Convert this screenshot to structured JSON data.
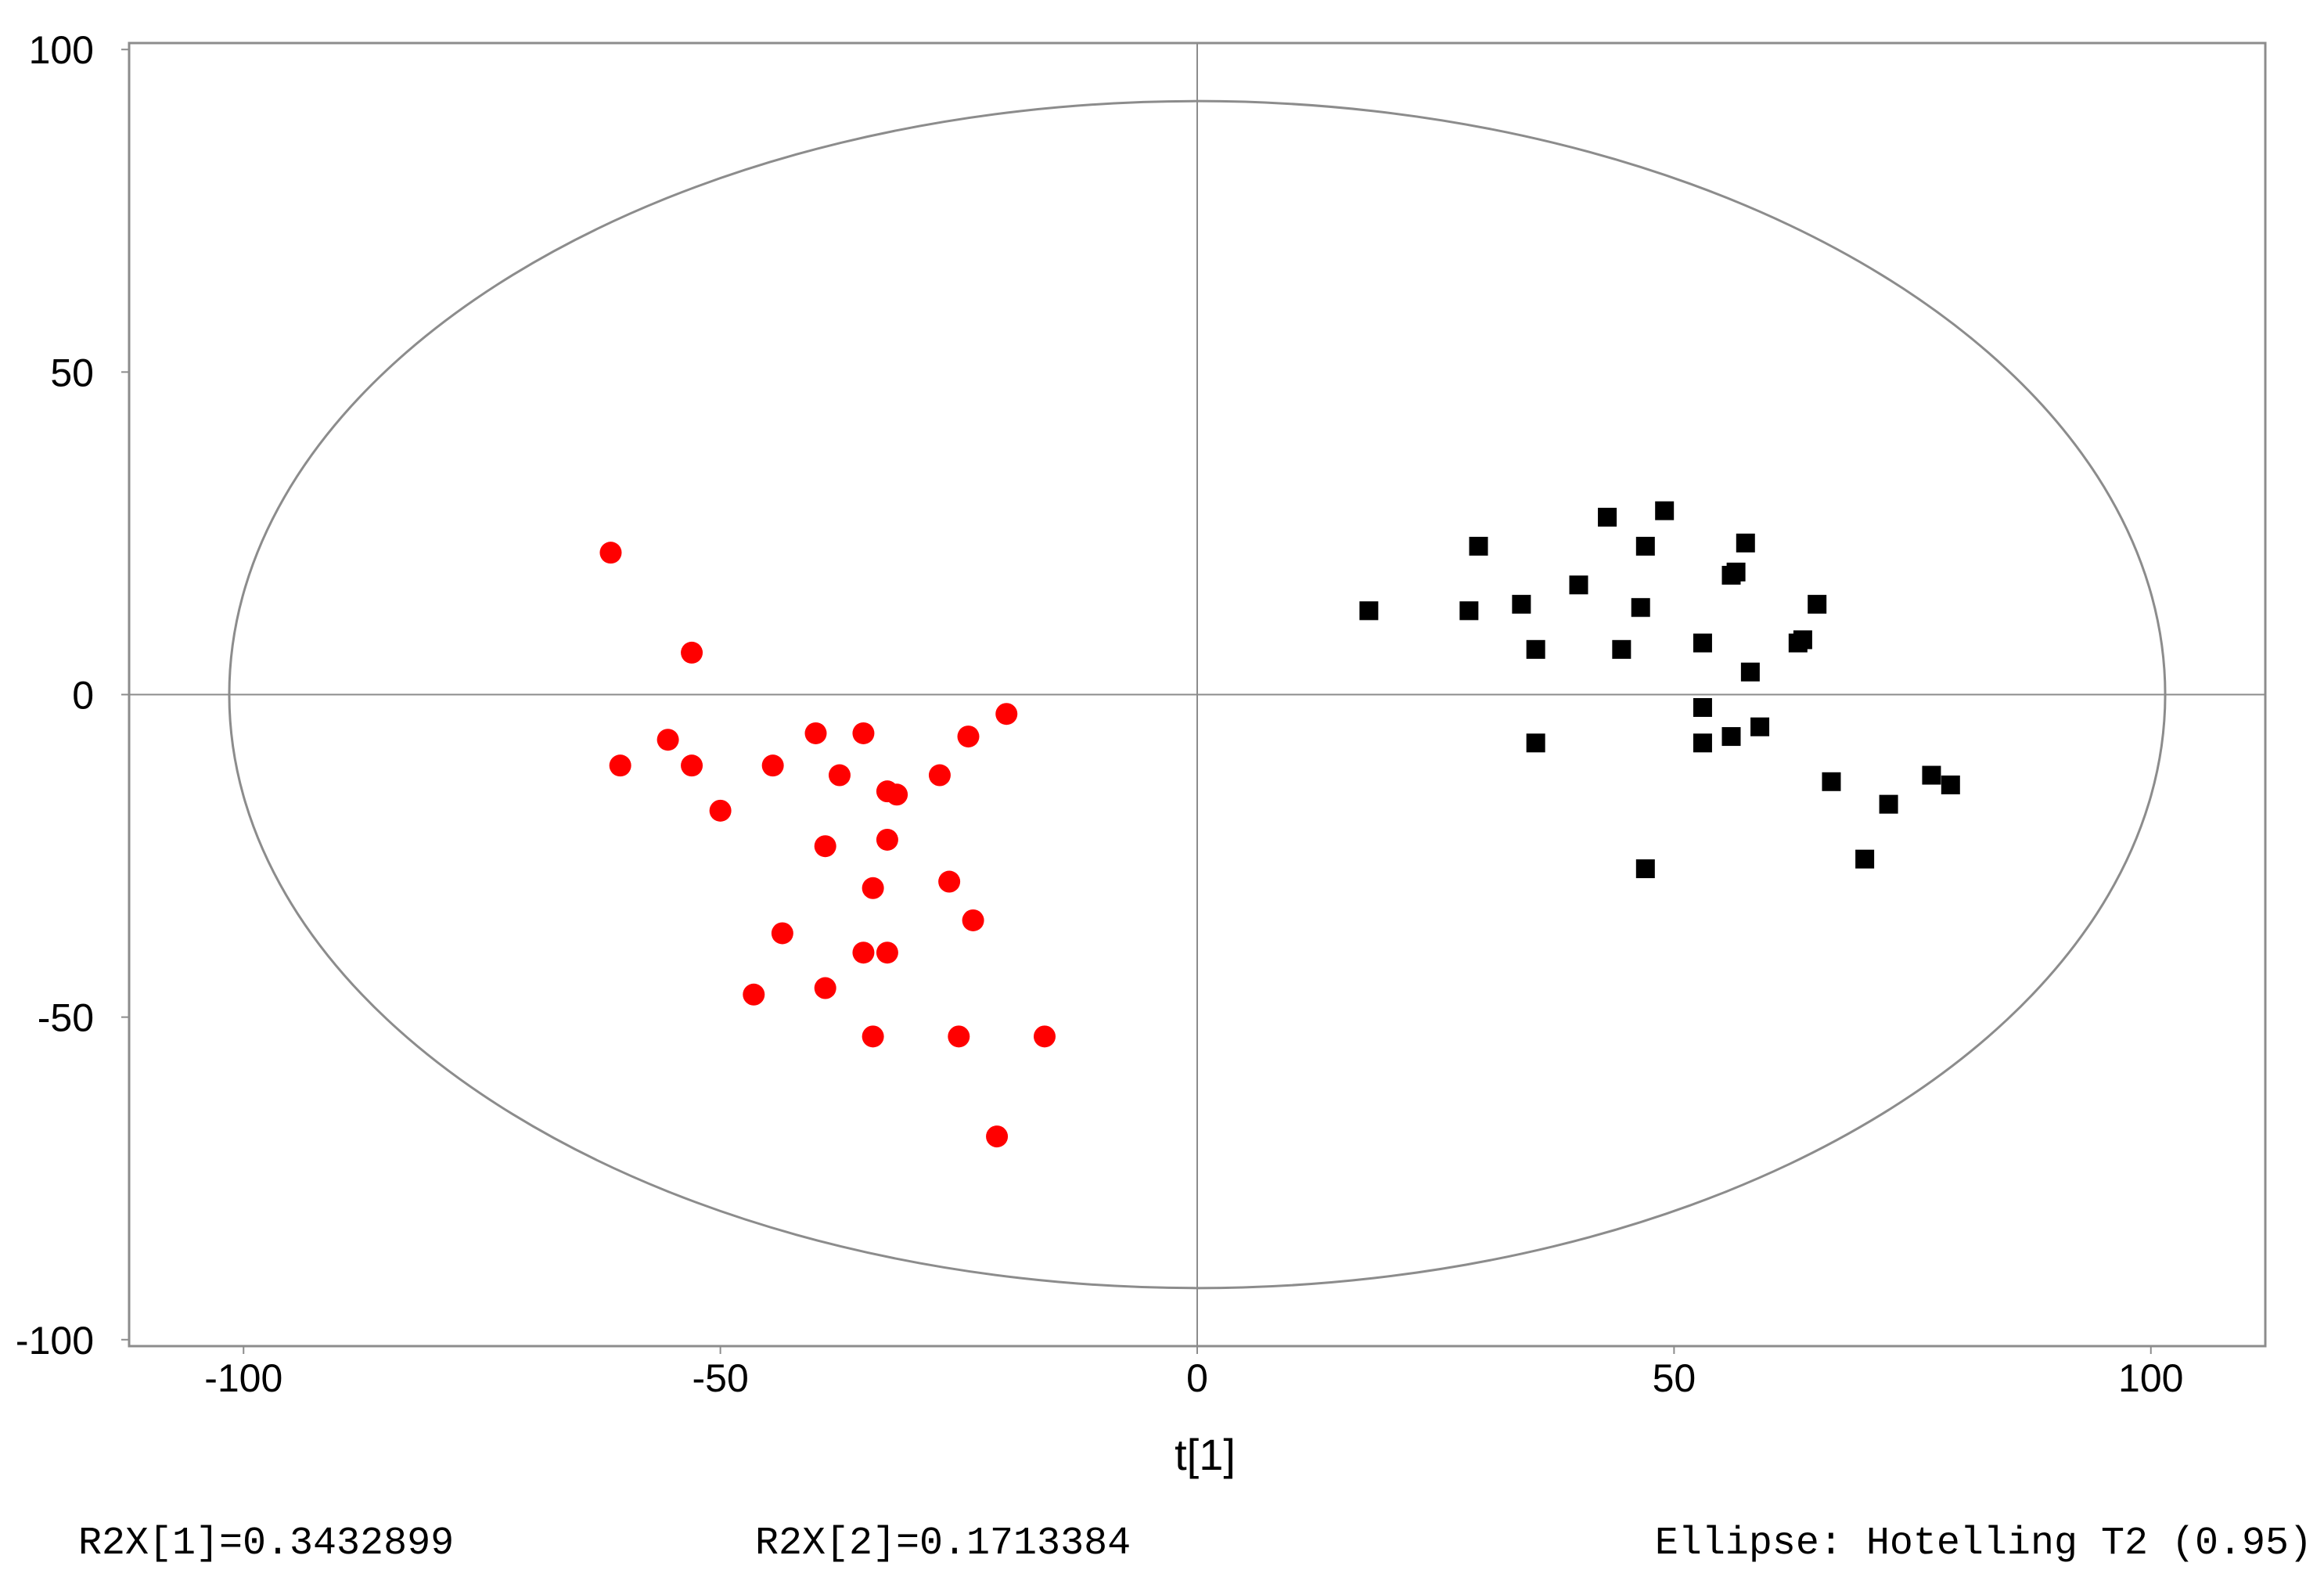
{
  "chart_data": {
    "type": "scatter",
    "title": "",
    "xlabel": "t[1]",
    "ylabel": "",
    "xlim": [
      -112,
      112
    ],
    "ylim": [
      -101,
      101
    ],
    "x_ticks": [
      -100,
      -50,
      0,
      50,
      100
    ],
    "y_ticks": [
      100,
      50,
      0,
      -50,
      -100
    ],
    "grid": false,
    "ellipse": {
      "label": "Ellipse: Hotelling T2 (0.95)",
      "semi_axis_x": 101.5,
      "semi_axis_y": 92
    },
    "series": [
      {
        "marker": "circle",
        "color": "#ff0000",
        "points": [
          {
            "x": -61.5,
            "y": 22
          },
          {
            "x": -53,
            "y": 6.5
          },
          {
            "x": -60.5,
            "y": -11
          },
          {
            "x": -55.5,
            "y": -7
          },
          {
            "x": -53,
            "y": -11
          },
          {
            "x": -50,
            "y": -18
          },
          {
            "x": -44.5,
            "y": -11
          },
          {
            "x": -40,
            "y": -6
          },
          {
            "x": -35,
            "y": -6
          },
          {
            "x": -37.5,
            "y": -12.5
          },
          {
            "x": -32.5,
            "y": -15
          },
          {
            "x": -31.5,
            "y": -15.5
          },
          {
            "x": -27,
            "y": -12.5
          },
          {
            "x": -24,
            "y": -6.5
          },
          {
            "x": -20,
            "y": -3
          },
          {
            "x": -39,
            "y": -23.5
          },
          {
            "x": -32.5,
            "y": -22.5
          },
          {
            "x": -34,
            "y": -30
          },
          {
            "x": -26,
            "y": -29
          },
          {
            "x": -23.5,
            "y": -35
          },
          {
            "x": -43.5,
            "y": -37
          },
          {
            "x": -35,
            "y": -40
          },
          {
            "x": -32.5,
            "y": -40
          },
          {
            "x": -46.5,
            "y": -46.5
          },
          {
            "x": -39,
            "y": -45.5
          },
          {
            "x": -34,
            "y": -53
          },
          {
            "x": -25,
            "y": -53
          },
          {
            "x": -16,
            "y": -53
          },
          {
            "x": -21,
            "y": -68.5
          }
        ]
      },
      {
        "marker": "square",
        "color": "#000000",
        "points": [
          {
            "x": 18,
            "y": 13
          },
          {
            "x": 28.5,
            "y": 13
          },
          {
            "x": 29.5,
            "y": 23
          },
          {
            "x": 34,
            "y": 14
          },
          {
            "x": 35.5,
            "y": 7
          },
          {
            "x": 40,
            "y": 17
          },
          {
            "x": 43,
            "y": 27.5
          },
          {
            "x": 44.5,
            "y": 7
          },
          {
            "x": 46.5,
            "y": 13.5
          },
          {
            "x": 47,
            "y": 23
          },
          {
            "x": 49,
            "y": 28.5
          },
          {
            "x": 53,
            "y": 8
          },
          {
            "x": 56,
            "y": 18.5
          },
          {
            "x": 56.5,
            "y": 19
          },
          {
            "x": 57.5,
            "y": 23.5
          },
          {
            "x": 58,
            "y": 3.5
          },
          {
            "x": 63,
            "y": 8
          },
          {
            "x": 63.5,
            "y": 8.5
          },
          {
            "x": 65,
            "y": 14
          },
          {
            "x": 53,
            "y": -2
          },
          {
            "x": 53,
            "y": -7.5
          },
          {
            "x": 56,
            "y": -6.5
          },
          {
            "x": 59,
            "y": -5
          },
          {
            "x": 35.5,
            "y": -7.5
          },
          {
            "x": 66.5,
            "y": -13.5
          },
          {
            "x": 72.5,
            "y": -17
          },
          {
            "x": 77,
            "y": -12.5
          },
          {
            "x": 79,
            "y": -14
          },
          {
            "x": 47,
            "y": -27
          },
          {
            "x": 70,
            "y": -25.5
          }
        ]
      }
    ]
  },
  "footer": {
    "r2x1": "R2X[1]=0.3432899",
    "r2x2": "R2X[2]=0.1713384",
    "ellipse_label": "Ellipse: Hotelling T2 (0.95)"
  }
}
